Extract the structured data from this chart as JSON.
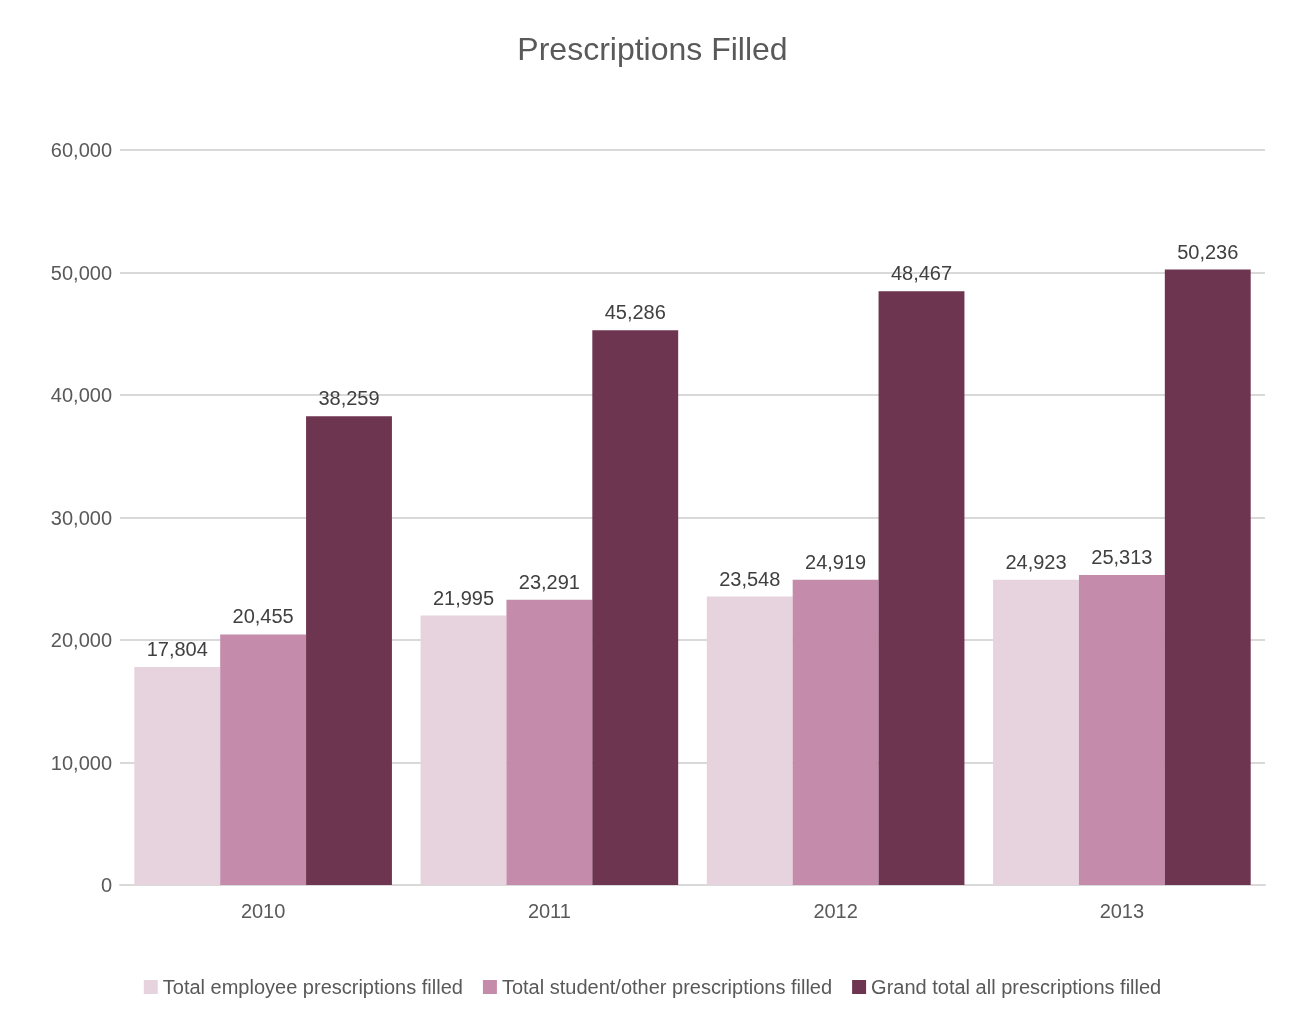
{
  "chart_data": {
    "type": "bar",
    "title": "Prescriptions Filled",
    "categories": [
      "2010",
      "2011",
      "2012",
      "2013"
    ],
    "series": [
      {
        "name": "Total employee prescriptions filled",
        "color": "#e6d3de",
        "values": [
          17804,
          21995,
          23548,
          24923
        ],
        "value_labels": [
          "17,804",
          "21,995",
          "23,548",
          "24,923"
        ]
      },
      {
        "name": "Total student/other prescriptions filled",
        "color": "#c48baa",
        "values": [
          20455,
          23291,
          24919,
          25313
        ],
        "value_labels": [
          "20,455",
          "23,291",
          "24,919",
          "25,313"
        ]
      },
      {
        "name": "Grand total all prescriptions filled",
        "color": "#6e3550",
        "values": [
          38259,
          45286,
          48467,
          50236
        ],
        "value_labels": [
          "38,259",
          "45,286",
          "48,467",
          "50,236"
        ]
      }
    ],
    "ylim": [
      0,
      60000
    ],
    "yticks": [
      {
        "value": 0,
        "label": "0"
      },
      {
        "value": 10000,
        "label": "10,000"
      },
      {
        "value": 20000,
        "label": "20,000"
      },
      {
        "value": 30000,
        "label": "30,000"
      },
      {
        "value": 40000,
        "label": "40,000"
      },
      {
        "value": 50000,
        "label": "50,000"
      },
      {
        "value": 60000,
        "label": "60,000"
      }
    ],
    "grid": "y",
    "legend": "bottom"
  }
}
